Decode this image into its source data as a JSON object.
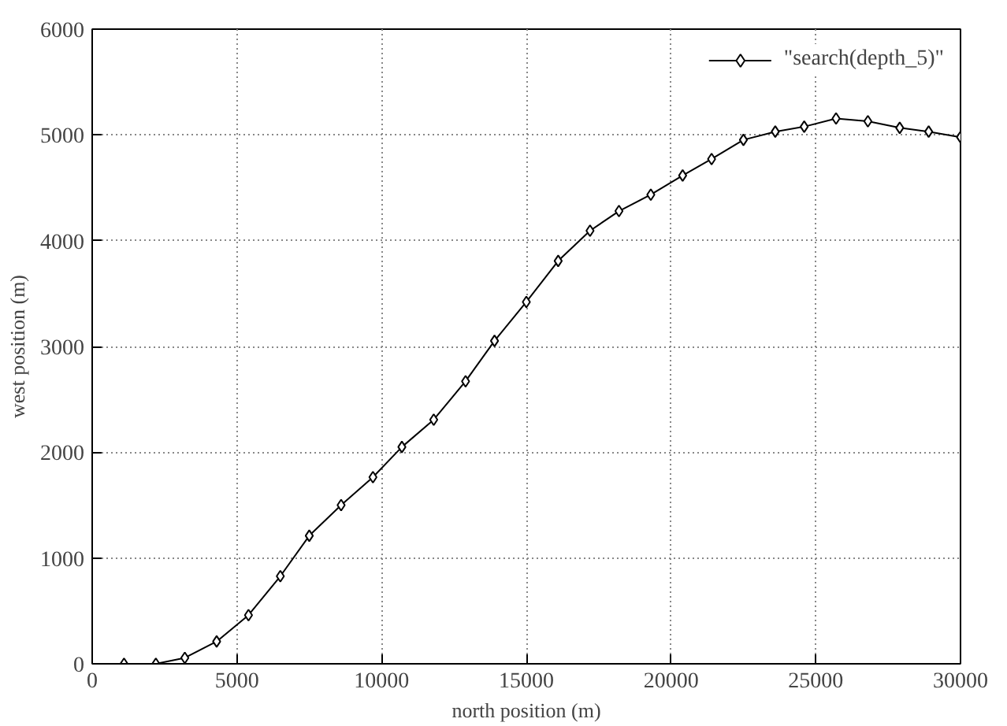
{
  "chart_data": {
    "type": "line",
    "xlabel": "north position (m)",
    "ylabel": "west position (m)",
    "x": [
      1100,
      2200,
      3200,
      4300,
      5400,
      6500,
      7500,
      8600,
      9700,
      10700,
      11800,
      12900,
      13900,
      15000,
      16100,
      17200,
      18200,
      19300,
      20400,
      21400,
      22500,
      23600,
      24600,
      25700,
      26800,
      27900,
      28900,
      30000
    ],
    "series": [
      {
        "name": "\"search(depth_5)\"",
        "color": "#000000",
        "values": [
          0,
          0,
          56,
          211,
          460,
          828,
          1211,
          1500,
          1764,
          2050,
          2308,
          2671,
          3053,
          3421,
          3809,
          4094,
          4280,
          4435,
          4616,
          4772,
          4953,
          5031,
          5078,
          5155,
          5129,
          5067,
          5031,
          4979
        ]
      }
    ],
    "xlim": [
      0,
      30000
    ],
    "ylim": [
      0,
      6000
    ],
    "xticks": [
      0,
      5000,
      10000,
      15000,
      20000,
      25000,
      30000
    ],
    "yticks": [
      0,
      1000,
      2000,
      3000,
      4000,
      5000,
      6000
    ],
    "grid": true,
    "legend": "top right",
    "marker": "diamond",
    "line_style": "solid"
  }
}
